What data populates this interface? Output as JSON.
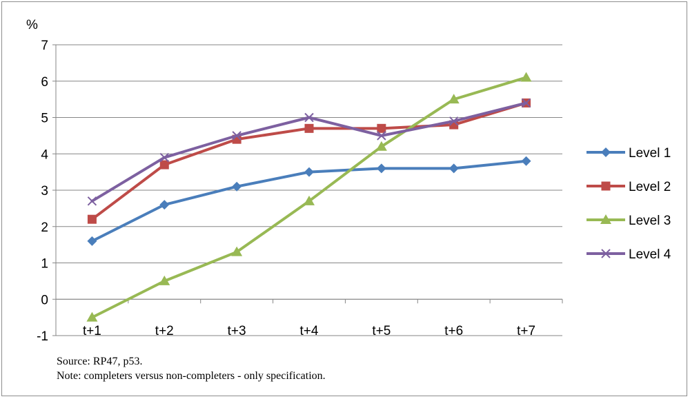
{
  "chart_data": {
    "type": "line",
    "title": "",
    "xlabel": "",
    "ylabel": "%",
    "ylim": [
      -1,
      7
    ],
    "y_ticks": [
      "-1",
      "0",
      "1",
      "2",
      "3",
      "4",
      "5",
      "6",
      "7"
    ],
    "categories": [
      "t+1",
      "t+2",
      "t+3",
      "t+4",
      "t+5",
      "t+6",
      "t+7"
    ],
    "grid": true,
    "legend_position": "right",
    "series": [
      {
        "name": "Level 1",
        "color": "#4a7ebb",
        "marker": "diamond",
        "values": [
          1.6,
          2.6,
          3.1,
          3.5,
          3.6,
          3.6,
          3.8
        ]
      },
      {
        "name": "Level 2",
        "color": "#be4b48",
        "marker": "square",
        "values": [
          2.2,
          3.7,
          4.4,
          4.7,
          4.7,
          4.8,
          5.4
        ]
      },
      {
        "name": "Level 3",
        "color": "#98b954",
        "marker": "triangle",
        "values": [
          -0.5,
          0.5,
          1.3,
          2.7,
          4.2,
          5.5,
          6.1
        ]
      },
      {
        "name": "Level 4",
        "color": "#7d60a0",
        "marker": "x",
        "values": [
          2.7,
          3.9,
          4.5,
          5.0,
          4.5,
          4.9,
          5.4
        ]
      }
    ]
  },
  "notes": {
    "source": "Source: RP47, p53.",
    "note": "Note: completers versus non-completers - only specification."
  }
}
